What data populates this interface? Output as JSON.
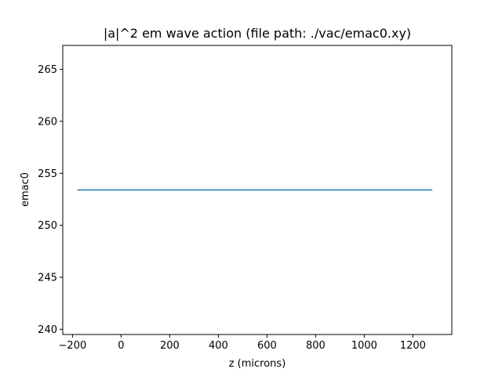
{
  "chart_data": {
    "type": "line",
    "title": "|a|^2 em wave action  (file path: ./vac/emac0.xy)",
    "xlabel": "z (microns)",
    "ylabel": "emac0",
    "xlim": [
      -240,
      1360
    ],
    "ylim": [
      239.5,
      267.3
    ],
    "xticks": [
      -200,
      0,
      200,
      400,
      600,
      800,
      1000,
      1200
    ],
    "xtick_labels": [
      "−200",
      "0",
      "200",
      "400",
      "600",
      "800",
      "1000",
      "1200"
    ],
    "yticks": [
      240,
      245,
      250,
      255,
      260,
      265
    ],
    "ytick_labels": [
      "240",
      "245",
      "250",
      "255",
      "260",
      "265"
    ],
    "grid": false,
    "series": [
      {
        "color": "#1f77b4",
        "x": [
          -180,
          1280
        ],
        "y": [
          253.4,
          253.4
        ]
      }
    ]
  }
}
